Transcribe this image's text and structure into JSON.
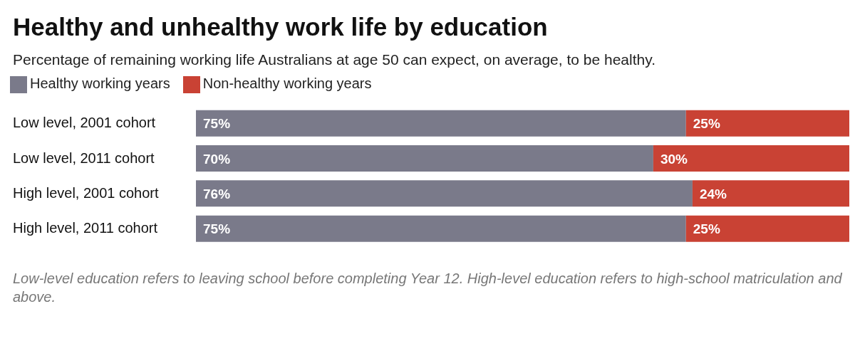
{
  "chart_data": {
    "type": "bar",
    "title": "Healthy and unhealthy work life by education",
    "subtitle": "Percentage of remaining working life Australians at age 50 can expect, on average, to be healthy.",
    "categories": [
      "Low level, 2001 cohort",
      "Low level, 2011 cohort",
      "High level, 2001 cohort",
      "High level, 2011 cohort"
    ],
    "orientation": "horizontal",
    "stacked": true,
    "legend": "top left",
    "series": [
      {
        "name": "Healthy working years",
        "color": "#7a7a8a",
        "values": [
          75,
          70,
          76,
          75
        ],
        "value_labels": [
          "75%",
          "70%",
          "76%",
          "75%"
        ]
      },
      {
        "name": "Non-healthy working years",
        "color": "#c94234",
        "values": [
          25,
          30,
          24,
          25
        ],
        "value_labels": [
          "25%",
          "30%",
          "24%",
          "25%"
        ]
      }
    ],
    "annotations": [
      "Low-level education refers to leaving school before completing Year 12. High-level education refers to high-school matriculation and above."
    ]
  }
}
